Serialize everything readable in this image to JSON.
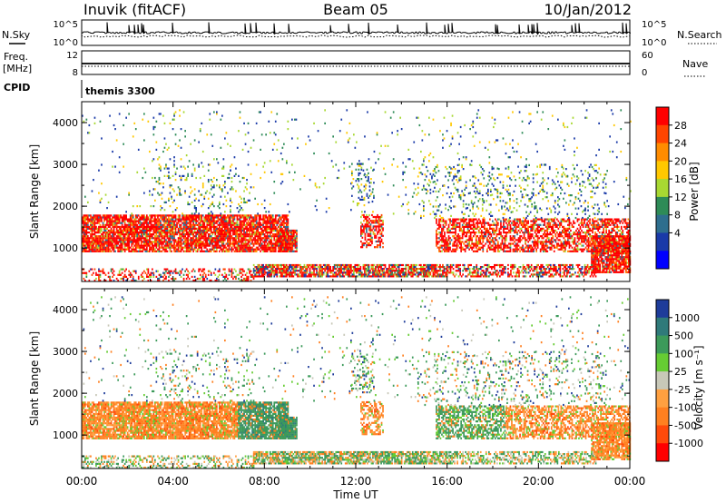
{
  "header": {
    "station": "Inuvik (fitACF)",
    "beam": "Beam 05",
    "date": "10/Jan/2012"
  },
  "aux_panels": {
    "nsky": {
      "label": "N.Sky",
      "ticks": [
        "10^5",
        "10^0"
      ]
    },
    "nsearch": {
      "label": "N.Search",
      "ticks": [
        "10^5",
        "10^0"
      ]
    },
    "freq": {
      "label": "Freq.",
      "unit": "[MHz]",
      "ticks": [
        "12",
        "8"
      ]
    },
    "nave": {
      "label": "Nave",
      "ticks": [
        "60",
        "0"
      ]
    },
    "cpid": {
      "label": "CPID",
      "value": "themis 3300"
    }
  },
  "chart_data": [
    {
      "type": "heatmap",
      "panel": "power",
      "ylabel": "Slant Range [km]",
      "yticks": [
        1000,
        2000,
        3000,
        4000
      ],
      "ylim": [
        200,
        4500
      ],
      "xlim_hours": [
        0,
        24
      ],
      "colorbar": {
        "label": "Power [dB]",
        "ticks": [
          "28",
          "24",
          "20",
          "16",
          "12",
          "8",
          "4"
        ],
        "colors": [
          "#ff0000",
          "#ff4500",
          "#ff8c00",
          "#ffc800",
          "#a8d832",
          "#2e8b57",
          "#2e6e8e",
          "#1a3aa8",
          "#0000ff"
        ]
      }
    },
    {
      "type": "heatmap",
      "panel": "velocity",
      "ylabel": "Slant Range [km]",
      "yticks": [
        1000,
        2000,
        3000,
        4000
      ],
      "ylim": [
        200,
        4500
      ],
      "xlim_hours": [
        0,
        24
      ],
      "xlabel": "Time UT",
      "xticks": [
        "00:00",
        "04:00",
        "08:00",
        "12:00",
        "16:00",
        "20:00",
        "00:00"
      ],
      "colorbar": {
        "label": "Velocity [m s⁻¹]",
        "ticks": [
          "1000",
          "500",
          "100",
          "25",
          "-25",
          "-100",
          "-500",
          "-1000"
        ],
        "colors": [
          "#1e3c9a",
          "#2f7a7a",
          "#3c9a5a",
          "#66cc33",
          "#c8c8b8",
          "#ffa040",
          "#ff8020",
          "#ff4a0a",
          "#ff0000"
        ]
      }
    }
  ]
}
